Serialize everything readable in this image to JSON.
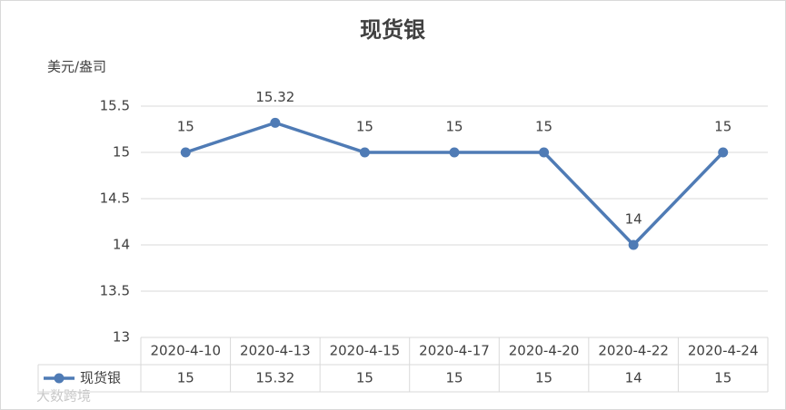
{
  "chart_data": {
    "type": "line",
    "title": "现货银",
    "y_label": "美元/盎司",
    "categories": [
      "2020-4-10",
      "2020-4-13",
      "2020-4-15",
      "2020-4-17",
      "2020-4-20",
      "2020-4-22",
      "2020-4-24"
    ],
    "series": [
      {
        "name": "现货银",
        "color": "#4f7bb5",
        "values": [
          15,
          15.32,
          15,
          15,
          15,
          14,
          15
        ]
      }
    ],
    "ylim": [
      13,
      15.5
    ],
    "yticks": [
      13,
      13.5,
      14,
      14.5,
      15,
      15.5
    ],
    "grid": true,
    "data_labels": true,
    "data_table": true
  },
  "watermark": "大数跨境"
}
